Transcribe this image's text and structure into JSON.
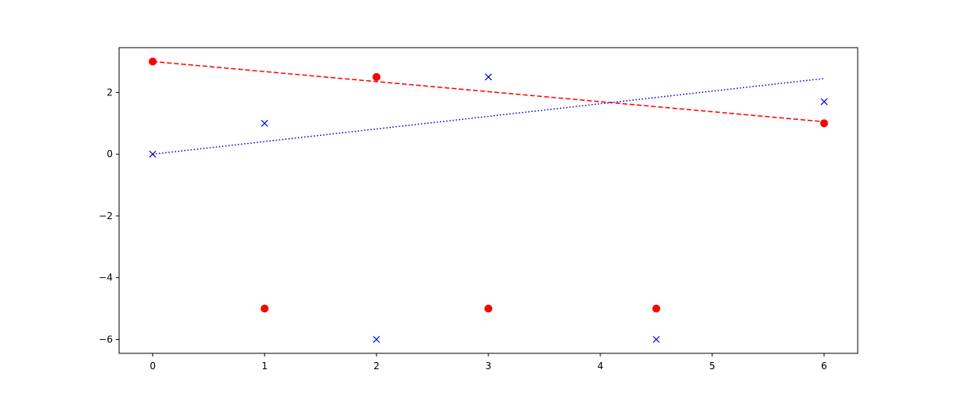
{
  "chart_data": {
    "type": "line",
    "xlim": [
      -0.3,
      6.3
    ],
    "xticks": [
      0,
      1,
      2,
      3,
      4,
      5,
      6
    ],
    "ylim": [
      -6.45,
      3.45
    ],
    "yticks": [
      {
        "value": -6,
        "label": "−6"
      },
      {
        "value": -4,
        "label": "−4"
      },
      {
        "value": -2,
        "label": "−2"
      },
      0,
      2
    ],
    "series": [
      {
        "color": "#ff0000",
        "marker": "circle",
        "linestyle": "none",
        "x": [
          0,
          1,
          2,
          3,
          4.5,
          6
        ],
        "values": [
          3,
          -5,
          2.5,
          -5,
          -5,
          1
        ]
      },
      {
        "color": "#0000cc",
        "marker": "x",
        "linestyle": "none",
        "x": [
          0,
          1,
          2,
          3,
          4.5,
          6
        ],
        "values": [
          0,
          1,
          -6,
          2.5,
          -6,
          1.7
        ]
      },
      {
        "color": "#ff0000",
        "marker": "none",
        "linestyle": "dashed",
        "x": [
          0,
          6
        ],
        "values": [
          3,
          1.05
        ]
      },
      {
        "color": "#0000cc",
        "marker": "none",
        "linestyle": "dotted",
        "x": [
          0,
          6
        ],
        "values": [
          0,
          2.45
        ]
      }
    ]
  }
}
